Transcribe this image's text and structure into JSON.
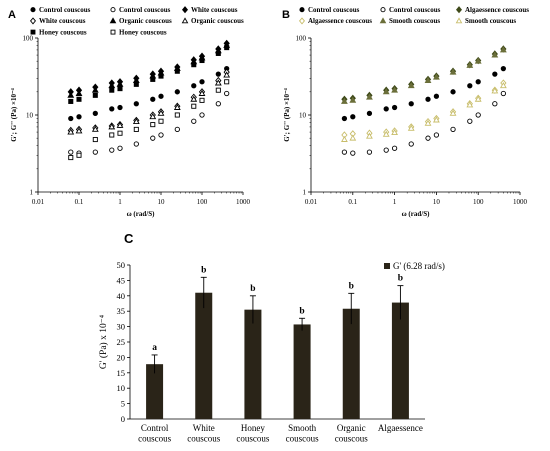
{
  "figure": {
    "panels": {
      "A": "A",
      "B": "B",
      "C": "C"
    }
  },
  "chart_data": [
    {
      "panel": "A",
      "type": "scatter",
      "xlabel": "ω (rad/S)",
      "ylabel": "G'; G'' (Pa) ×10⁻⁴",
      "xscale": "log",
      "yscale": "log",
      "xlim": [
        0.01,
        1000
      ],
      "ylim": [
        1,
        100
      ],
      "x_ticks": [
        "0.01",
        "0.1",
        "1",
        "10",
        "100",
        "1000"
      ],
      "y_ticks": [
        "1",
        "10",
        "100"
      ],
      "legend": [
        "Control couscous",
        "Control couscous",
        "White couscous",
        "White couscous",
        "Organic couscous",
        "Organic couscous",
        "Honey couscous",
        "Honey couscous"
      ],
      "series": [
        {
          "name": "Control couscous",
          "modulus": "G'",
          "marker": "circle-filled",
          "x": [
            0.063,
            0.1,
            0.25,
            0.63,
            1,
            2.5,
            6.3,
            10,
            25,
            63,
            100,
            250,
            400
          ],
          "y": [
            9.0,
            9.5,
            10.5,
            12,
            12.5,
            14,
            16,
            17.5,
            20,
            24,
            27,
            34,
            40
          ]
        },
        {
          "name": "Control couscous",
          "modulus": "G''",
          "marker": "circle-open",
          "x": [
            0.063,
            0.1,
            0.25,
            0.63,
            1,
            2.5,
            6.3,
            10,
            25,
            63,
            100,
            250,
            400
          ],
          "y": [
            3.3,
            3.2,
            3.3,
            3.5,
            3.7,
            4.2,
            5,
            5.5,
            6.5,
            8.3,
            10,
            14,
            19
          ]
        },
        {
          "name": "White couscous",
          "modulus": "G'",
          "marker": "diamond-filled",
          "x": [
            0.063,
            0.1,
            0.25,
            0.63,
            1,
            2.5,
            6.3,
            10,
            25,
            63,
            100,
            250,
            400
          ],
          "y": [
            20,
            21,
            23,
            26,
            27,
            30,
            34,
            37,
            42,
            52,
            58,
            72,
            85
          ]
        },
        {
          "name": "White couscous",
          "modulus": "G''",
          "marker": "diamond-open",
          "x": [
            0.063,
            0.1,
            0.25,
            0.63,
            1,
            2.5,
            6.3,
            10,
            25,
            63,
            100,
            250,
            400
          ],
          "y": [
            6.3,
            6.5,
            6.8,
            7.2,
            7.5,
            8.5,
            10,
            11,
            13,
            17,
            20,
            28,
            36
          ]
        },
        {
          "name": "Organic couscous",
          "modulus": "G'",
          "marker": "triangle-filled",
          "x": [
            0.063,
            0.1,
            0.25,
            0.63,
            1,
            2.5,
            6.3,
            10,
            25,
            63,
            100,
            250,
            400
          ],
          "y": [
            18,
            19,
            21,
            24,
            25,
            28,
            32,
            35,
            40,
            49,
            55,
            68,
            80
          ]
        },
        {
          "name": "Organic couscous",
          "modulus": "G''",
          "marker": "triangle-open",
          "x": [
            0.063,
            0.1,
            0.25,
            0.63,
            1,
            2.5,
            6.3,
            10,
            25,
            63,
            100,
            250,
            400
          ],
          "y": [
            6.0,
            6.2,
            6.5,
            7.0,
            7.3,
            8.2,
            9.5,
            10.5,
            12.5,
            16,
            19,
            26,
            33
          ]
        },
        {
          "name": "Honey couscous",
          "modulus": "G'",
          "marker": "square-filled",
          "x": [
            0.063,
            0.1,
            0.25,
            0.63,
            1,
            2.5,
            6.3,
            10,
            25,
            63,
            100,
            250,
            400
          ],
          "y": [
            15,
            16,
            18,
            21,
            22,
            25,
            29,
            32,
            37,
            45,
            51,
            63,
            75
          ]
        },
        {
          "name": "Honey couscous",
          "modulus": "G''",
          "marker": "square-open",
          "x": [
            0.063,
            0.1,
            0.25,
            0.63,
            1,
            2.5,
            6.3,
            10,
            25,
            63,
            100,
            250,
            400
          ],
          "y": [
            2.8,
            3.0,
            4.8,
            5.5,
            5.8,
            6.5,
            7.5,
            8.3,
            10,
            13,
            15.5,
            21,
            27
          ]
        }
      ],
      "colors": {
        "marker": "#000000"
      }
    },
    {
      "panel": "B",
      "type": "scatter",
      "xlabel": "ω (rad/S)",
      "ylabel": "G'; G'' (Pa) ×10⁻⁴",
      "xscale": "log",
      "yscale": "log",
      "xlim": [
        0.01,
        1000
      ],
      "ylim": [
        1,
        100
      ],
      "x_ticks": [
        "0.01",
        "0.1",
        "1",
        "10",
        "100",
        "1000"
      ],
      "y_ticks": [
        "1",
        "10",
        "100"
      ],
      "legend": [
        "Control couscous",
        "Control couscous",
        "Algaessence couscous",
        "Algaessence couscous",
        "Smooth couscous",
        "Smooth couscous"
      ],
      "series": [
        {
          "name": "Control couscous",
          "modulus": "G'",
          "marker": "circle-filled",
          "color": "#000000",
          "x": [
            0.063,
            0.1,
            0.25,
            0.63,
            1,
            2.5,
            6.3,
            10,
            25,
            63,
            100,
            250,
            400
          ],
          "y": [
            9.0,
            9.5,
            10.5,
            12,
            12.5,
            14,
            16,
            17.5,
            20,
            24,
            27,
            34,
            40
          ]
        },
        {
          "name": "Control couscous",
          "modulus": "G''",
          "marker": "circle-open",
          "color": "#000000",
          "x": [
            0.063,
            0.1,
            0.25,
            0.63,
            1,
            2.5,
            6.3,
            10,
            25,
            63,
            100,
            250,
            400
          ],
          "y": [
            3.3,
            3.2,
            3.3,
            3.5,
            3.7,
            4.2,
            5,
            5.5,
            6.5,
            8.3,
            10,
            14,
            19
          ]
        },
        {
          "name": "Algaessence couscous",
          "modulus": "G'",
          "marker": "diamond-filled",
          "color": "#3f4a1a",
          "x": [
            0.063,
            0.1,
            0.25,
            0.63,
            1,
            2.5,
            6.3,
            10,
            25,
            63,
            100,
            250,
            400
          ],
          "y": [
            16,
            16.5,
            18,
            21,
            22,
            25,
            29,
            32,
            37,
            45,
            51,
            62,
            72
          ]
        },
        {
          "name": "Algaessence couscous",
          "modulus": "G''",
          "marker": "diamond-open",
          "color": "#c8bd6a",
          "x": [
            0.063,
            0.1,
            0.25,
            0.63,
            1,
            2.5,
            6.3,
            10,
            25,
            63,
            100,
            250,
            400
          ],
          "y": [
            5.5,
            5.7,
            5.8,
            6.0,
            6.2,
            7.0,
            8.2,
            9.0,
            11,
            14,
            16.5,
            21,
            26
          ]
        },
        {
          "name": "Smooth couscous",
          "modulus": "G'",
          "marker": "triangle-filled",
          "color": "#6b6f3a",
          "x": [
            0.063,
            0.1,
            0.25,
            0.63,
            1,
            2.5,
            6.3,
            10,
            25,
            63,
            100,
            250,
            400
          ],
          "y": [
            15,
            15.5,
            17,
            20,
            21,
            24,
            28,
            31,
            36,
            44,
            50,
            60,
            70
          ]
        },
        {
          "name": "Smooth couscous",
          "modulus": "G''",
          "marker": "triangle-open",
          "color": "#c8bd6a",
          "x": [
            0.063,
            0.1,
            0.25,
            0.63,
            1,
            2.5,
            6.3,
            10,
            25,
            63,
            100,
            250,
            400
          ],
          "y": [
            4.8,
            5.0,
            5.3,
            5.6,
            5.9,
            6.7,
            7.8,
            8.6,
            10.5,
            13.5,
            16,
            20.5,
            24
          ]
        }
      ]
    },
    {
      "panel": "C",
      "type": "bar",
      "ylabel": "G' (Pa) x 10⁻⁴",
      "ylim": [
        0,
        50
      ],
      "y_ticks": [
        "0",
        "5",
        "10",
        "15",
        "20",
        "25",
        "30",
        "35",
        "40",
        "45",
        "50"
      ],
      "legend": [
        "G' (6.28 rad/s)"
      ],
      "categories": [
        [
          "Control",
          "couscous"
        ],
        [
          "White",
          "couscous"
        ],
        [
          "Honey",
          "couscous"
        ],
        [
          "Smooth",
          "couscous"
        ],
        [
          "Organic",
          "couscous"
        ],
        [
          "Algaessence",
          ""
        ]
      ],
      "values": [
        17.8,
        41.0,
        35.5,
        30.7,
        35.8,
        37.8
      ],
      "errors": [
        3.0,
        5.0,
        4.5,
        2.0,
        5.0,
        5.5
      ],
      "significance": [
        "a",
        "b",
        "b",
        "b",
        "b",
        "b"
      ],
      "colors": {
        "bar": "#2a2418",
        "error": "#000000"
      }
    }
  ]
}
